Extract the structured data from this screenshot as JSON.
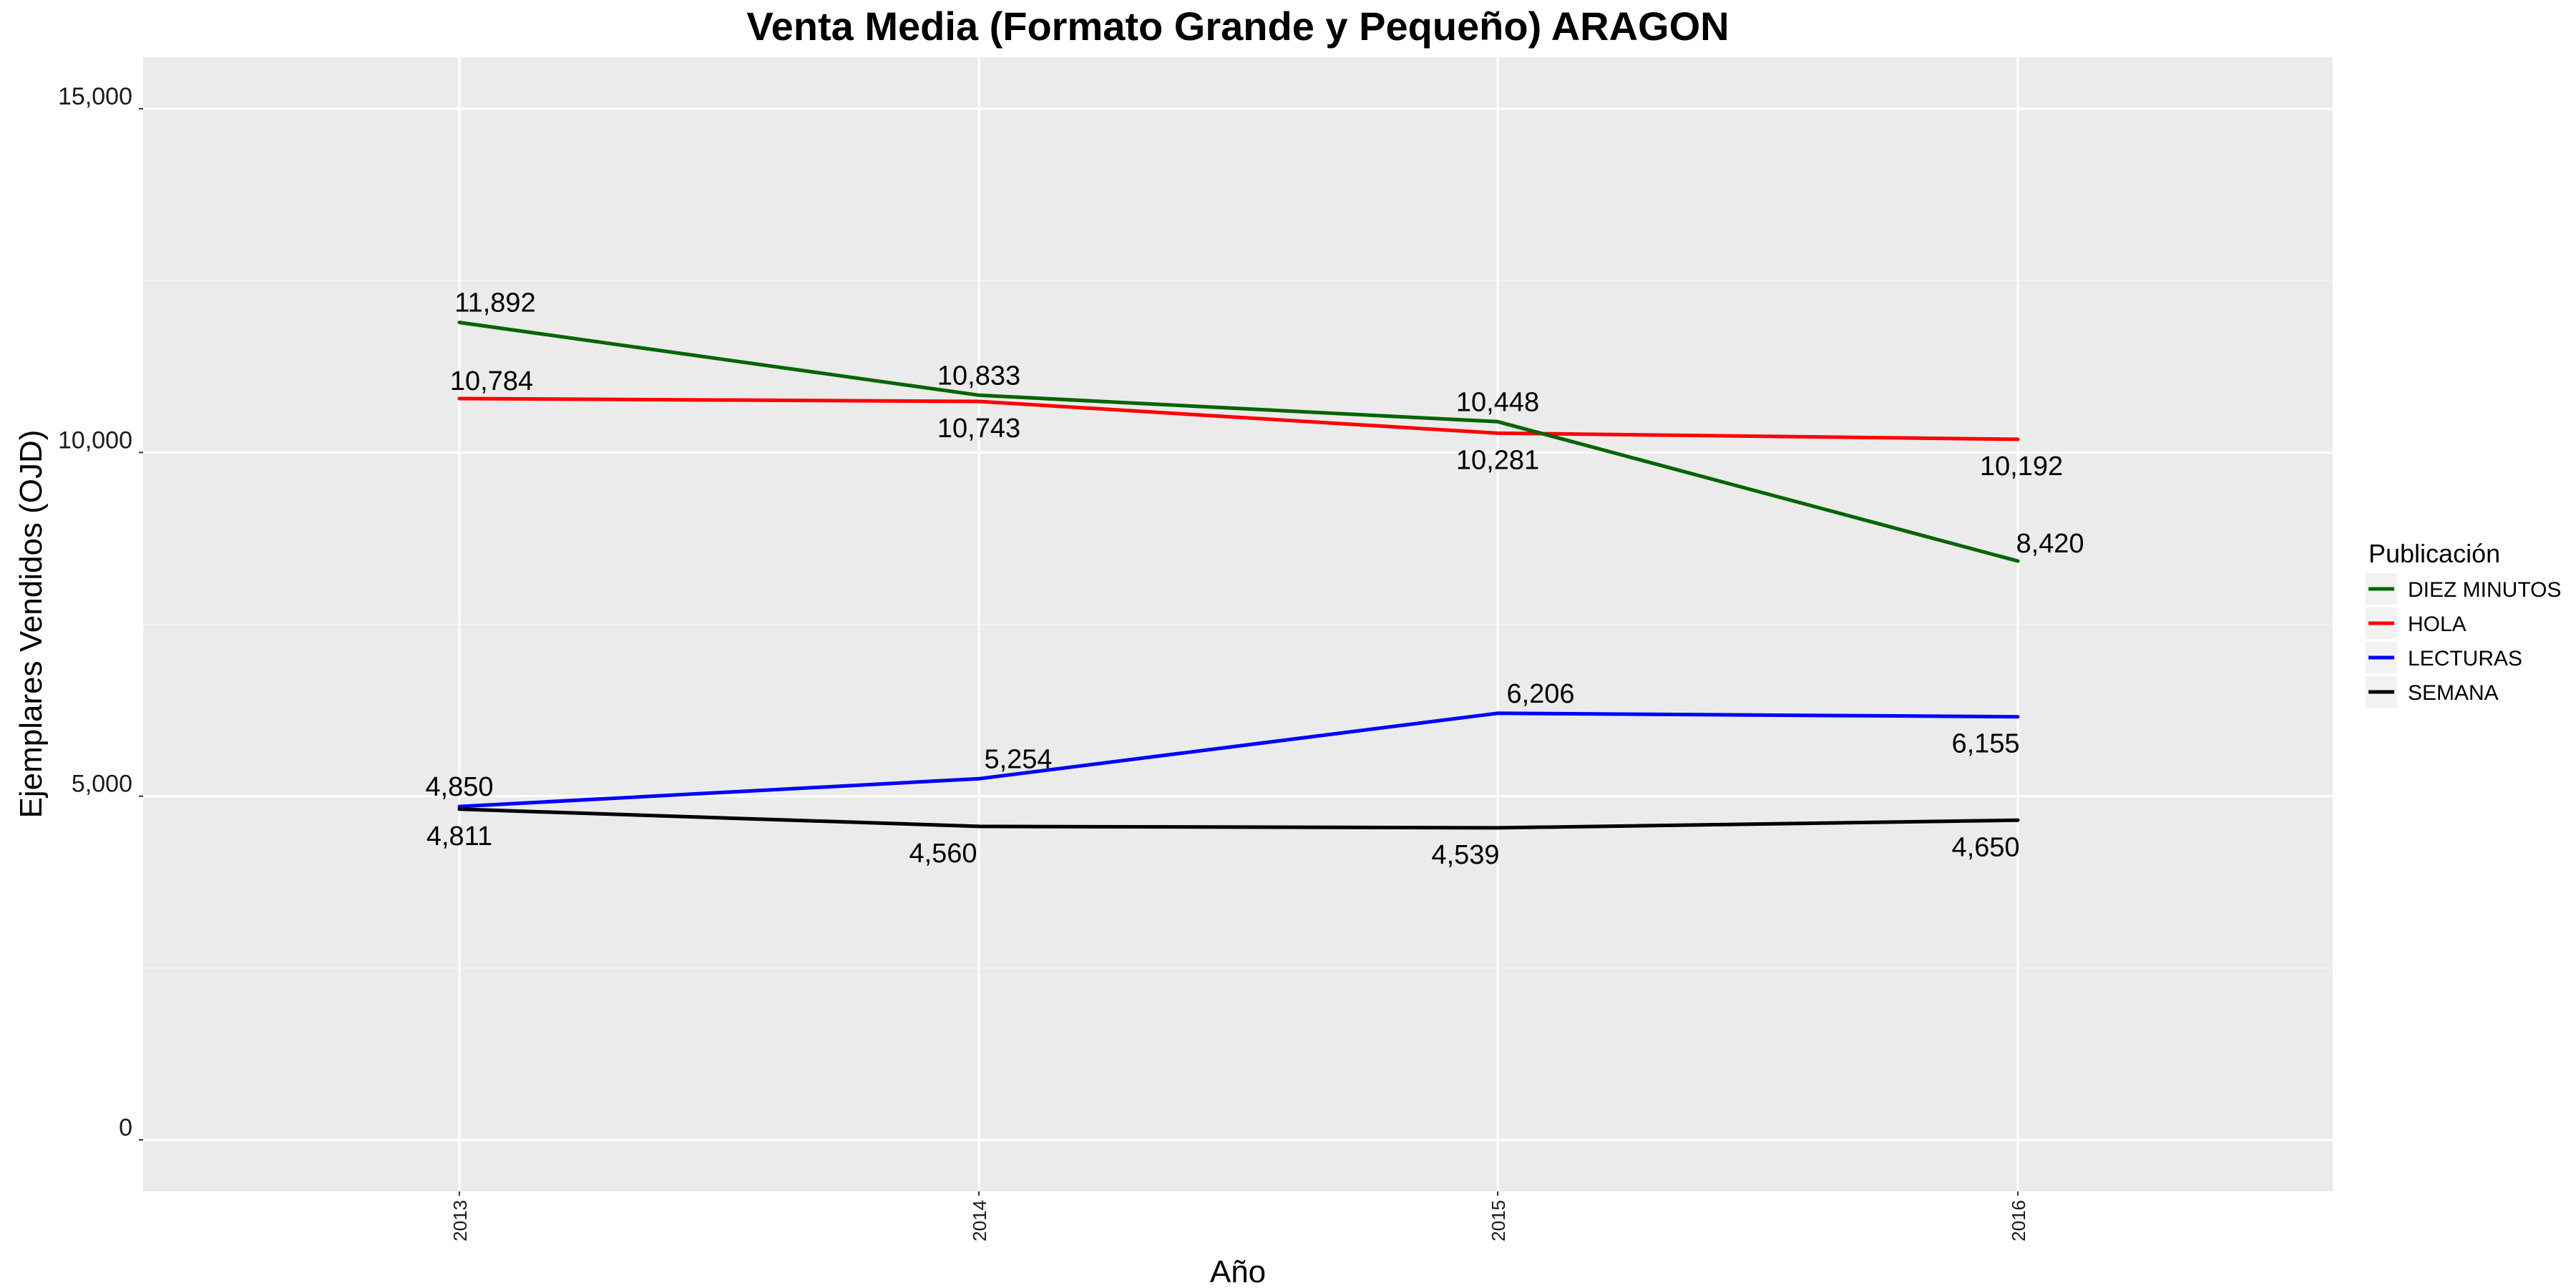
{
  "chart_data": {
    "type": "line",
    "title": "Venta Media (Formato Grande y Pequeño)  ARAGON",
    "xlabel": "Año",
    "ylabel": "Ejemplares Vendidos (OJD)",
    "x": [
      "2013",
      "2014",
      "2015",
      "2016"
    ],
    "ylim": [
      -750,
      15750
    ],
    "y_ticks": [
      0,
      5000,
      10000,
      15000
    ],
    "y_tick_labels": [
      "0",
      "5,000",
      "10,000",
      "15,000"
    ],
    "grid": true,
    "legend": {
      "title": "Publicación",
      "position": "right"
    },
    "series": [
      {
        "name": "DIEZ MINUTOS",
        "color": "#006400",
        "values": [
          11892,
          10833,
          10448,
          8420
        ],
        "labels": [
          "11,892",
          "10,833",
          "10,448",
          "8,420"
        ]
      },
      {
        "name": "HOLA",
        "color": "#ff0000",
        "values": [
          10784,
          10743,
          10281,
          10192
        ],
        "labels": [
          "10,784",
          "10,743",
          "10,281",
          "10,192"
        ]
      },
      {
        "name": "LECTURAS",
        "color": "#0000ff",
        "values": [
          4850,
          5254,
          6206,
          6155
        ],
        "labels": [
          "4,850",
          "5,254",
          "6,206",
          "6,155"
        ]
      },
      {
        "name": "SEMANA",
        "color": "#000000",
        "values": [
          4811,
          4560,
          4539,
          4650
        ],
        "labels": [
          "4,811",
          "4,560",
          "4,539",
          "4,650"
        ]
      }
    ]
  }
}
